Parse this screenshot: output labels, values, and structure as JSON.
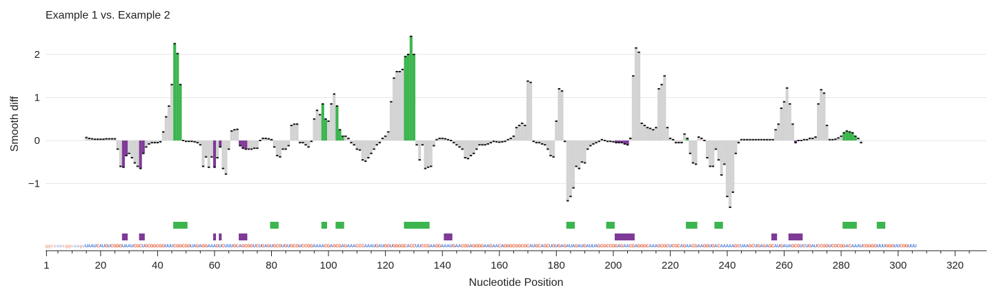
{
  "chart_data": {
    "type": "bar",
    "title": "Example 1 vs. Example 2",
    "xlabel": "Nucleotide Position",
    "ylabel": "Smooth diff",
    "xlim": [
      1,
      326
    ],
    "ylim": [
      -2.2,
      2.65
    ],
    "x_ticks": [
      1,
      20,
      40,
      60,
      80,
      100,
      120,
      140,
      160,
      180,
      200,
      220,
      240,
      260,
      280,
      300,
      320
    ],
    "y_ticks": [
      -1,
      0,
      1,
      2
    ],
    "y_tick_labels": [
      "−1",
      "0",
      "1",
      "2"
    ],
    "grid": true,
    "colors": {
      "positive_significant": "#3cb54e",
      "negative_significant": "#7e3a96",
      "not_significant": "#d3d3d3",
      "gridline": "#e6e6e6",
      "nuc_A": "#3a6fd8",
      "nuc_G": "#e0502a",
      "nuc_C": "#e0502a",
      "nuc_U": "#3a6fd8"
    },
    "x_start": 15,
    "values": [
      0.07,
      0.05,
      0.04,
      0.03,
      0.03,
      0.03,
      0.03,
      0.04,
      0.04,
      0.04,
      0.04,
      -0.2,
      -0.6,
      -0.62,
      -0.35,
      -0.3,
      -0.4,
      -0.52,
      -0.6,
      -0.65,
      -0.3,
      -0.15,
      -0.08,
      -0.05,
      -0.05,
      -0.05,
      -0.03,
      0.2,
      0.55,
      0.8,
      1.3,
      2.25,
      2.02,
      1.3,
      0.0,
      -0.02,
      -0.02,
      -0.02,
      -0.03,
      -0.05,
      -0.1,
      -0.6,
      -0.38,
      -0.62,
      -0.38,
      -0.62,
      -0.4,
      -0.15,
      -0.65,
      -0.78,
      -0.2,
      0.22,
      0.25,
      0.26,
      -0.12,
      -0.18,
      -0.2,
      -0.2,
      -0.2,
      -0.18,
      -0.18,
      0.0,
      0.05,
      0.05,
      0.04,
      0.02,
      -0.15,
      -0.35,
      -0.38,
      -0.2,
      -0.2,
      -0.12,
      0.35,
      0.38,
      0.38,
      -0.05,
      -0.05,
      -0.1,
      -0.15,
      -0.02,
      0.5,
      0.7,
      0.6,
      0.85,
      0.5,
      0.45,
      0.85,
      1.08,
      0.8,
      0.25,
      0.1,
      0.1,
      0.05,
      -0.05,
      -0.1,
      -0.2,
      -0.22,
      -0.45,
      -0.48,
      -0.4,
      -0.3,
      -0.2,
      -0.1,
      -0.05,
      0.05,
      0.1,
      0.2,
      0.9,
      1.45,
      1.6,
      1.6,
      1.65,
      1.95,
      2.0,
      2.42,
      2.0,
      -0.1,
      -0.45,
      -0.1,
      -0.65,
      -0.62,
      -0.6,
      -0.12,
      0.02,
      0.05,
      0.05,
      0.04,
      0.02,
      0.0,
      -0.05,
      -0.1,
      -0.15,
      -0.2,
      -0.4,
      -0.42,
      -0.35,
      -0.3,
      -0.2,
      -0.1,
      -0.1,
      -0.1,
      -0.08,
      -0.05,
      -0.02,
      -0.03,
      -0.04,
      -0.03,
      -0.02,
      0.02,
      0.05,
      0.1,
      0.3,
      0.35,
      0.4,
      0.35,
      1.38,
      1.35,
      -0.02,
      -0.05,
      -0.05,
      -0.08,
      -0.1,
      -0.2,
      -0.35,
      -0.38,
      0.45,
      1.2,
      1.15,
      -0.02,
      -1.4,
      -1.3,
      -1.1,
      -0.6,
      -0.65,
      -0.5,
      -0.52,
      -0.2,
      -0.12,
      -0.08,
      -0.05,
      -0.02,
      0.02,
      0.0,
      -0.02,
      -0.02,
      -0.03,
      -0.05,
      -0.05,
      -0.05,
      -0.08,
      -0.1,
      0.05,
      1.5,
      2.15,
      2.05,
      0.4,
      0.35,
      0.3,
      0.28,
      0.25,
      0.3,
      1.2,
      1.3,
      1.5,
      0.3,
      0.05,
      0.02,
      -0.05,
      -0.05,
      -0.05,
      0.15,
      0.05,
      -0.3,
      -0.52,
      -0.55,
      0.08,
      0.05,
      0.0,
      -0.4,
      -0.6,
      -0.6,
      -0.2,
      -0.45,
      -0.8,
      -0.55,
      -1.3,
      -1.55,
      -1.2,
      -0.3,
      -0.05,
      0.02,
      0.02,
      0.02,
      0.02,
      0.02,
      0.02,
      0.02,
      0.02,
      0.02,
      0.02,
      0.02,
      0.02,
      0.25,
      0.38,
      0.75,
      0.9,
      1.22,
      0.85,
      0.38,
      -0.05,
      0.0,
      0.0,
      0.02,
      0.02,
      0.05,
      0.05,
      0.08,
      0.85,
      1.18,
      1.1,
      0.35,
      0.02,
      0.02,
      0.03,
      0.06,
      0.1,
      0.18,
      0.22,
      0.2,
      0.18,
      0.1,
      0.05,
      -0.05
    ],
    "categories_per_bar": [
      "n",
      "n",
      "n",
      "n",
      "n",
      "n",
      "n",
      "n",
      "n",
      "n",
      "n",
      "n",
      "N",
      "N",
      "n",
      "n",
      "n",
      "n",
      "N",
      "N",
      "n",
      "n",
      "n",
      "n",
      "n",
      "n",
      "n",
      "n",
      "n",
      "n",
      "P",
      "P",
      "P",
      "P",
      "n",
      "n",
      "n",
      "n",
      "n",
      "n",
      "n",
      "n",
      "n",
      "n",
      "n",
      "n",
      "N",
      "n",
      "N",
      "N",
      "n",
      "n",
      "n",
      "n",
      "n",
      "n",
      "n",
      "n",
      "n",
      "n",
      "n",
      "n",
      "n",
      "n",
      "n",
      "n",
      "n",
      "n",
      "n",
      "n",
      "n",
      "n",
      "n",
      "n",
      "n",
      "n",
      "n",
      "n",
      "n",
      "n",
      "n",
      "n",
      "n",
      "n",
      "n",
      "n",
      "n",
      "n",
      "n",
      "n",
      "n",
      "n",
      "n",
      "n",
      "n",
      "n",
      "n",
      "n",
      "n",
      "n",
      "n",
      "n",
      "n",
      "n",
      "n",
      "n",
      "n",
      "n",
      "n",
      "n",
      "n",
      "n",
      "n",
      "n",
      "n",
      "n",
      "n",
      "n",
      "n",
      "n",
      "n",
      "n",
      "n",
      "n",
      "n",
      "n",
      "n",
      "n",
      "n",
      "n",
      "n",
      "n",
      "n",
      "n",
      "n",
      "n",
      "n",
      "n",
      "n",
      "n",
      "n",
      "n",
      "n",
      "n",
      "n",
      "n",
      "n",
      "n",
      "n",
      "n",
      "n",
      "n",
      "n",
      "n",
      "n",
      "n",
      "n",
      "n",
      "n",
      "n",
      "n",
      "n",
      "n",
      "n",
      "n",
      "n",
      "n",
      "n",
      "n",
      "n",
      "n",
      "n",
      "n",
      "n",
      "n",
      "n",
      "n",
      "n",
      "n",
      "n",
      "n",
      "n",
      "n",
      "n",
      "n",
      "n",
      "n",
      "n",
      "n",
      "n",
      "n",
      "n",
      "n",
      "n",
      "n",
      "n",
      "n",
      "n",
      "n",
      "n",
      "n",
      "n",
      "n",
      "n",
      "n",
      "n",
      "n",
      "n",
      "n",
      "n",
      "n",
      "n",
      "n",
      "n",
      "n",
      "n",
      "n",
      "n",
      "n",
      "n",
      "n",
      "n",
      "n",
      "n",
      "n",
      "n",
      "n",
      "n",
      "n",
      "n",
      "n",
      "n",
      "n",
      "n",
      "n",
      "n",
      "n",
      "n",
      "n",
      "n",
      "n",
      "n",
      "n",
      "n",
      "n",
      "n",
      "n",
      "n",
      "n",
      "n",
      "n",
      "n",
      "n",
      "n",
      "n",
      "n",
      "n",
      "n",
      "n",
      "n",
      "n",
      "n",
      "n",
      "n",
      "n",
      "n",
      "n",
      "n",
      "n",
      "n",
      "n",
      "n",
      "n",
      "n",
      "n",
      "n",
      "n",
      "n",
      "n",
      "n",
      "n",
      "n",
      "n",
      "n",
      "n",
      "n",
      "n",
      "n",
      "n",
      "n",
      "n"
    ],
    "positive_significant_ranges": [
      [
        46,
        50
      ],
      [
        80,
        82
      ],
      [
        98,
        99
      ],
      [
        103,
        105
      ],
      [
        127,
        135
      ],
      [
        184,
        186
      ],
      [
        198,
        200
      ],
      [
        226,
        229
      ],
      [
        236,
        238
      ],
      [
        281,
        285
      ],
      [
        293,
        295
      ]
    ],
    "negative_significant_ranges": [
      [
        28,
        29
      ],
      [
        34,
        35
      ],
      [
        60,
        60
      ],
      [
        62,
        62
      ],
      [
        69,
        71
      ],
      [
        141,
        143
      ],
      [
        201,
        207
      ],
      [
        256,
        257
      ],
      [
        262,
        266
      ]
    ],
    "sequence": "ggccuucggcaaguuaaucaugucggguaaucgcugcggcgguuucggcgguagaggaaagucuuugcagcggucugagugcgugugcguccggaaaacgagcgagaaacccaaaugaugguggggcaccuuccgaaggaaaugaacggaggggaagaacagggcggcgcaugcagcugugagauagaugauuagcgccggagaacgagggcaaagcgcucgcagaacgaaggugacaaaaagcuaagcugagagcaugauagcgucugauccggucgcggacaaaucgggguuuggguucgguuu",
    "sequence_start": 1
  }
}
